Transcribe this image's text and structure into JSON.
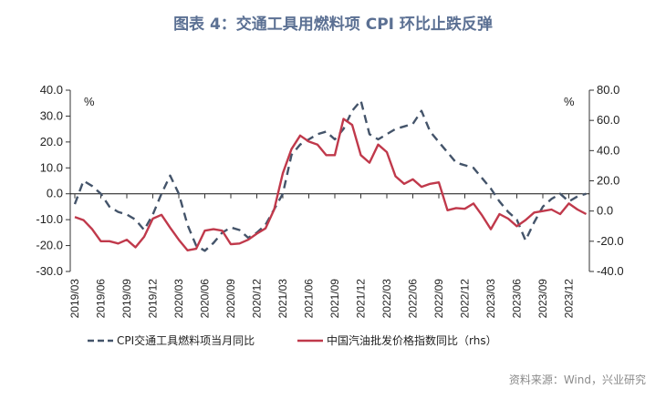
{
  "title": "图表 4：交通工具用燃料项 CPI 环比止跌反弹",
  "source": "资料来源：Wind，兴业研究",
  "chart_data": {
    "type": "line",
    "title": "图表 4：交通工具用燃料项 CPI 环比止跌反弹",
    "left_unit": "%",
    "right_unit": "%",
    "ylim_left": [
      -30,
      40
    ],
    "ylim_right": [
      -40,
      80
    ],
    "yticks_left": [
      "40.0",
      "30.0",
      "20.0",
      "10.0",
      "0.0",
      "-10.0",
      "-20.0",
      "-30.0"
    ],
    "yticks_right": [
      "80.0",
      "60.0",
      "40.0",
      "20.0",
      "0.0",
      "-20.0",
      "-40.0"
    ],
    "xtick_labels": [
      "2019/03",
      "2019/06",
      "2019/09",
      "2019/12",
      "2020/03",
      "2020/06",
      "2020/09",
      "2020/12",
      "2021/03",
      "2021/06",
      "2021/09",
      "2021/12",
      "2022/03",
      "2022/06",
      "2022/09",
      "2022/12",
      "2023/03",
      "2023/06",
      "2023/09",
      "2023/12"
    ],
    "x_start": "2019/03",
    "x_end": "2024/02",
    "series": [
      {
        "name": "CPI交通工具燃料项当月同比",
        "axis": "left",
        "style": "dashed",
        "color": "#44546a",
        "values": [
          -4,
          5,
          3,
          0,
          -5,
          -7,
          -8,
          -10,
          -14,
          -8,
          0,
          7,
          0,
          -12,
          -20,
          -22,
          -19,
          -15,
          -13,
          -14,
          -17,
          -15,
          -12,
          -6,
          0,
          15,
          19,
          21,
          23,
          24,
          21,
          25,
          32,
          36,
          23,
          21,
          23,
          25,
          26,
          27,
          32,
          24,
          20,
          16,
          12,
          11,
          10,
          6,
          2,
          -3,
          -7,
          -10,
          -18,
          -11,
          -5,
          -2,
          0,
          -3,
          -1,
          0
        ]
      },
      {
        "name": "中国汽油批发价格指数同比（rhs）",
        "axis": "right",
        "style": "solid",
        "color": "#c0394b",
        "values": [
          -4,
          -6,
          -12,
          -20,
          -20,
          -21.5,
          -19,
          -24,
          -17,
          -5,
          -2.5,
          -11,
          -19,
          -26,
          -25,
          -13,
          -12,
          -13,
          -22,
          -21.5,
          -19,
          -15,
          -11.5,
          1,
          25,
          41,
          50,
          46,
          44,
          37,
          37,
          61,
          57,
          37,
          32,
          44,
          39,
          23,
          18,
          21,
          16,
          18,
          19,
          0.5,
          2,
          1.5,
          5,
          -3,
          -12,
          -2,
          -5,
          -10,
          -6,
          -1,
          0,
          1,
          -2,
          5,
          1,
          -2
        ]
      }
    ]
  }
}
